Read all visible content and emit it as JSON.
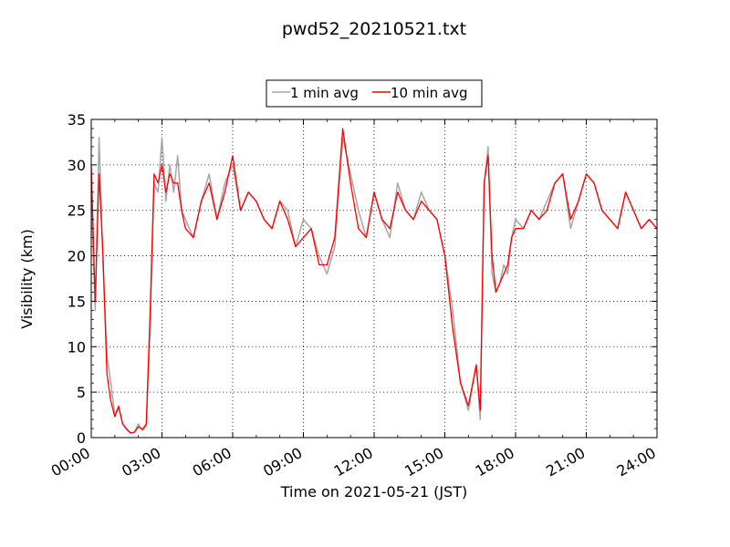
{
  "chart_data": {
    "type": "line",
    "title": "pwd52_20210521.txt",
    "xlabel": "Time on 2021-05-21 (JST)",
    "ylabel": "Visibility (km)",
    "xlim": [
      "00:00",
      "24:00"
    ],
    "ylim": [
      0,
      35
    ],
    "x_ticks": [
      "00:00",
      "03:00",
      "06:00",
      "09:00",
      "12:00",
      "15:00",
      "18:00",
      "21:00",
      "24:00"
    ],
    "y_ticks": [
      "0",
      "5",
      "10",
      "15",
      "20",
      "25",
      "30",
      "35"
    ],
    "grid": true,
    "legend_position": "top-center",
    "series": [
      {
        "name": "1 min avg",
        "color": "#a6a6a6",
        "x": [
          "00:00",
          "00:10",
          "00:20",
          "00:30",
          "00:40",
          "00:50",
          "01:00",
          "01:10",
          "01:20",
          "01:30",
          "01:40",
          "01:50",
          "02:00",
          "02:10",
          "02:20",
          "02:30",
          "02:40",
          "02:50",
          "03:00",
          "03:10",
          "03:20",
          "03:30",
          "03:40",
          "03:50",
          "04:00",
          "04:20",
          "04:40",
          "05:00",
          "05:20",
          "05:40",
          "06:00",
          "06:20",
          "06:40",
          "07:00",
          "07:20",
          "07:40",
          "08:00",
          "08:20",
          "08:40",
          "09:00",
          "09:20",
          "09:40",
          "10:00",
          "10:20",
          "10:40",
          "11:00",
          "11:20",
          "11:40",
          "12:00",
          "12:20",
          "12:40",
          "13:00",
          "13:20",
          "13:40",
          "14:00",
          "14:20",
          "14:40",
          "15:00",
          "15:20",
          "15:40",
          "16:00",
          "16:20",
          "16:30",
          "16:40",
          "16:50",
          "17:00",
          "17:10",
          "17:20",
          "17:30",
          "17:40",
          "17:50",
          "18:00",
          "18:20",
          "18:40",
          "19:00",
          "19:20",
          "19:40",
          "20:00",
          "20:20",
          "20:40",
          "21:00",
          "21:20",
          "21:40",
          "22:00",
          "22:20",
          "22:40",
          "23:00",
          "23:20",
          "23:40",
          "24:00"
        ],
        "values": [
          27,
          14,
          33,
          19,
          9,
          6,
          2.5,
          3.5,
          1.5,
          1.0,
          0.5,
          0.6,
          1.5,
          0.8,
          1.2,
          12,
          28,
          27,
          33,
          26,
          30,
          27,
          31,
          25,
          24,
          22,
          26,
          29,
          24,
          28,
          30,
          25,
          27,
          26,
          24,
          23,
          26,
          25,
          21,
          24,
          23,
          20,
          18,
          21,
          33,
          29,
          25,
          22,
          27,
          24,
          22,
          28,
          25,
          24,
          27,
          25,
          24,
          20,
          14,
          6,
          3,
          8,
          2,
          28,
          32,
          18,
          16,
          17,
          19,
          18,
          22,
          24,
          23,
          25,
          24,
          26,
          28,
          29,
          23,
          26,
          29,
          28,
          25,
          24,
          23,
          27,
          25,
          23,
          24,
          23
        ]
      },
      {
        "name": "10 min avg",
        "color": "#ff0000",
        "x": [
          "00:00",
          "00:10",
          "00:20",
          "00:30",
          "00:40",
          "00:50",
          "01:00",
          "01:10",
          "01:20",
          "01:30",
          "01:40",
          "01:50",
          "02:00",
          "02:10",
          "02:20",
          "02:30",
          "02:40",
          "02:50",
          "03:00",
          "03:10",
          "03:20",
          "03:30",
          "03:40",
          "03:50",
          "04:00",
          "04:20",
          "04:40",
          "05:00",
          "05:20",
          "05:40",
          "06:00",
          "06:20",
          "06:40",
          "07:00",
          "07:20",
          "07:40",
          "08:00",
          "08:20",
          "08:40",
          "09:00",
          "09:20",
          "09:40",
          "10:00",
          "10:20",
          "10:40",
          "11:00",
          "11:20",
          "11:40",
          "12:00",
          "12:20",
          "12:40",
          "13:00",
          "13:20",
          "13:40",
          "14:00",
          "14:20",
          "14:40",
          "15:00",
          "15:20",
          "15:40",
          "16:00",
          "16:20",
          "16:30",
          "16:40",
          "16:50",
          "17:00",
          "17:10",
          "17:20",
          "17:30",
          "17:40",
          "17:50",
          "18:00",
          "18:20",
          "18:40",
          "19:00",
          "19:20",
          "19:40",
          "20:00",
          "20:20",
          "20:40",
          "21:00",
          "21:20",
          "21:40",
          "22:00",
          "22:20",
          "22:40",
          "23:00",
          "23:20",
          "23:40",
          "24:00"
        ],
        "values": [
          30,
          15,
          29,
          20,
          7,
          4,
          2.3,
          3.4,
          1.5,
          0.9,
          0.5,
          0.6,
          1.2,
          0.9,
          1.5,
          14,
          29,
          28,
          30,
          27,
          29,
          28,
          28,
          25,
          23,
          22,
          26,
          28,
          24,
          27,
          31,
          25,
          27,
          26,
          24,
          23,
          26,
          24,
          21,
          22,
          23,
          19,
          19,
          22,
          34,
          28,
          23,
          22,
          27,
          24,
          23,
          27,
          25,
          24,
          26,
          25,
          24,
          20,
          12,
          6,
          3.5,
          8,
          3,
          28,
          31,
          20,
          16,
          17,
          18,
          19,
          22,
          23,
          23,
          25,
          24,
          25,
          28,
          29,
          24,
          26,
          29,
          28,
          25,
          24,
          23,
          27,
          25,
          23,
          24,
          23
        ]
      }
    ]
  }
}
